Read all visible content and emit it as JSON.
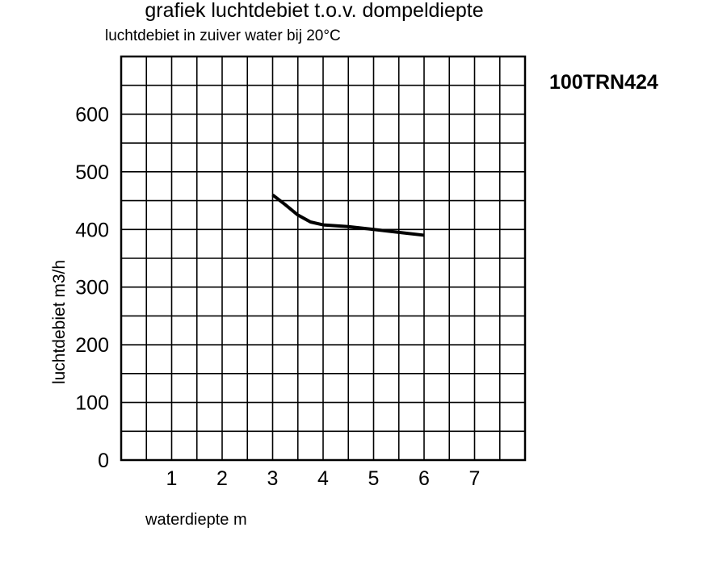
{
  "chart_data": {
    "type": "line",
    "title": "grafiek luchtdebiet t.o.v. dompeldiepte",
    "subtitle": "luchtdebiet in zuiver water bij 20°C",
    "model": "100TRN424",
    "xlabel": "waterdiepte m",
    "ylabel": "luchtdebiet m3/h",
    "xlim": [
      0,
      8
    ],
    "ylim": [
      0,
      700
    ],
    "x_ticks": [
      "1",
      "2",
      "3",
      "4",
      "5",
      "6",
      "7"
    ],
    "y_ticks": [
      "0",
      "100",
      "200",
      "300",
      "400",
      "500",
      "600"
    ],
    "grid": true,
    "series": [
      {
        "x": [
          3,
          3.25,
          3.5,
          3.75,
          4,
          4.5,
          5,
          5.5,
          6
        ],
        "y": [
          460,
          443,
          425,
          413,
          408,
          405,
          400,
          395,
          390
        ]
      }
    ]
  }
}
